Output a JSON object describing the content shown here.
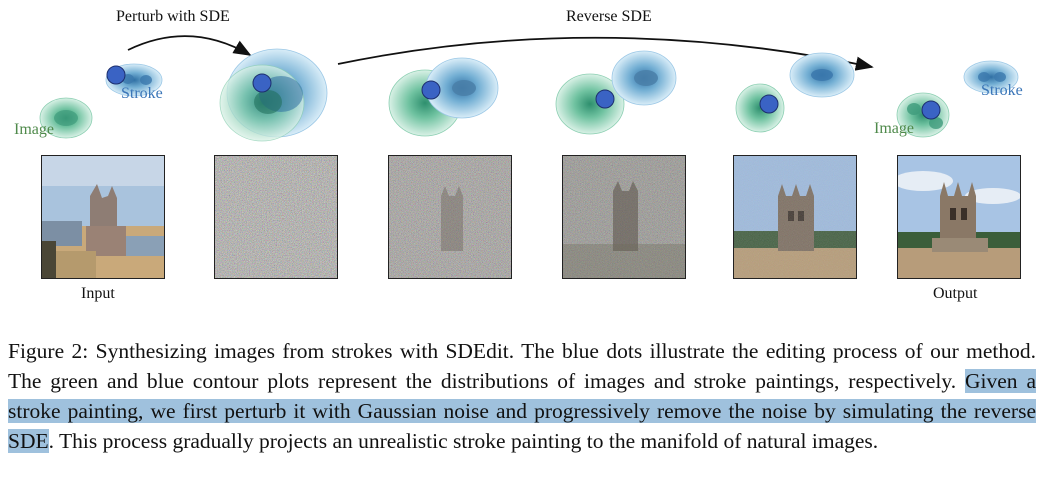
{
  "figure": {
    "arrow_labels": {
      "perturb": "Perturb with SDE",
      "reverse": "Reverse SDE"
    },
    "distribution_labels": {
      "image": "Image",
      "stroke": "Stroke"
    },
    "panel_labels": {
      "input": "Input",
      "output": "Output"
    },
    "colors": {
      "green": "#4f8a4b",
      "blue": "#3b76b8",
      "dot": "#3a63c4",
      "highlight": "#9fc1dd"
    }
  },
  "caption": {
    "prefix": "Figure 2: Synthesizing images from strokes with SDEdit. The blue dots illustrate the editing process of our method. The green and blue contour plots represent the distributions of images and stroke paintings, respectively. ",
    "highlight": "Given a stroke painting, we first perturb it with Gaussian noise and progressively remove the noise by simulating the reverse SDE",
    "suffix": ". This process gradually projects an unrealistic stroke painting to the manifold of natural images."
  }
}
